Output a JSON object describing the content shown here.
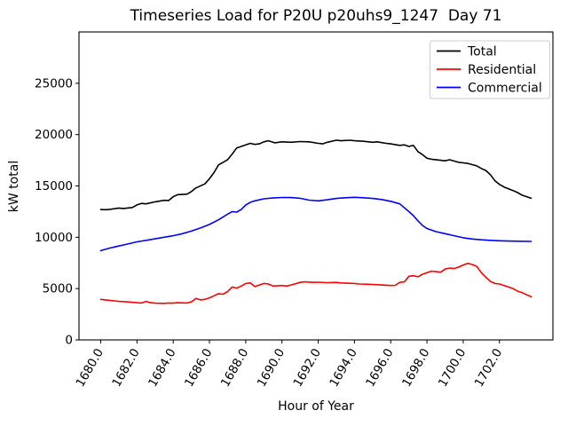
{
  "figure": {
    "background": "#ffffff",
    "frame_color": "#000000"
  },
  "chart_data": {
    "type": "line",
    "title": "Timeseries Load for P20U p20uhs9_1247  Day 71",
    "xlabel": "Hour of Year",
    "ylabel": "kW total",
    "xlim": [
      1678.8,
      1704.95
    ],
    "ylim": [
      0,
      30000
    ],
    "grid": false,
    "x_ticks": {
      "values": [
        1680,
        1682,
        1684,
        1686,
        1688,
        1690,
        1692,
        1694,
        1696,
        1698,
        1700,
        1702
      ],
      "labels": [
        "1680.0",
        "1682.0",
        "1684.0",
        "1686.0",
        "1688.0",
        "1690.0",
        "1692.0",
        "1694.0",
        "1696.0",
        "1698.0",
        "1700.0",
        "1702.0"
      ],
      "rotation_deg": 60
    },
    "y_ticks": {
      "values": [
        0,
        5000,
        10000,
        15000,
        20000,
        25000
      ],
      "labels": [
        "0",
        "5000",
        "10000",
        "15000",
        "20000",
        "25000"
      ]
    },
    "legend": {
      "position": "upper right",
      "border_color": "#cccccc",
      "background": "#ffffff",
      "entries": [
        "Total",
        "Residential",
        "Commercial"
      ]
    },
    "series": [
      {
        "name": "Total",
        "color": "#000000",
        "points": [
          [
            1680,
            12700
          ],
          [
            1680.25,
            12680
          ],
          [
            1680.5,
            12720
          ],
          [
            1681,
            12850
          ],
          [
            1681.25,
            12800
          ],
          [
            1681.75,
            12900
          ],
          [
            1682,
            13150
          ],
          [
            1682.25,
            13300
          ],
          [
            1682.5,
            13250
          ],
          [
            1683,
            13450
          ],
          [
            1683.5,
            13600
          ],
          [
            1683.75,
            13580
          ],
          [
            1684,
            13950
          ],
          [
            1684.25,
            14150
          ],
          [
            1684.75,
            14200
          ],
          [
            1685,
            14450
          ],
          [
            1685.25,
            14800
          ],
          [
            1685.75,
            15200
          ],
          [
            1686,
            15700
          ],
          [
            1686.25,
            16300
          ],
          [
            1686.5,
            17050
          ],
          [
            1686.75,
            17300
          ],
          [
            1687,
            17550
          ],
          [
            1687.25,
            18100
          ],
          [
            1687.5,
            18700
          ],
          [
            1687.75,
            18850
          ],
          [
            1688,
            19000
          ],
          [
            1688.25,
            19150
          ],
          [
            1688.5,
            19050
          ],
          [
            1688.75,
            19100
          ],
          [
            1689,
            19300
          ],
          [
            1689.25,
            19400
          ],
          [
            1689.6,
            19200
          ],
          [
            1690,
            19300
          ],
          [
            1690.5,
            19250
          ],
          [
            1691,
            19320
          ],
          [
            1691.5,
            19300
          ],
          [
            1692,
            19150
          ],
          [
            1692.25,
            19100
          ],
          [
            1692.5,
            19250
          ],
          [
            1693,
            19450
          ],
          [
            1693.25,
            19400
          ],
          [
            1693.75,
            19450
          ],
          [
            1694,
            19400
          ],
          [
            1694.5,
            19350
          ],
          [
            1695,
            19250
          ],
          [
            1695.25,
            19300
          ],
          [
            1695.75,
            19150
          ],
          [
            1696,
            19100
          ],
          [
            1696.5,
            18950
          ],
          [
            1696.75,
            19000
          ],
          [
            1697,
            18850
          ],
          [
            1697.25,
            18950
          ],
          [
            1697.5,
            18350
          ],
          [
            1697.75,
            18050
          ],
          [
            1698,
            17700
          ],
          [
            1698.25,
            17600
          ],
          [
            1698.75,
            17500
          ],
          [
            1699,
            17450
          ],
          [
            1699.25,
            17550
          ],
          [
            1699.75,
            17300
          ],
          [
            1700,
            17250
          ],
          [
            1700.25,
            17200
          ],
          [
            1700.75,
            16950
          ],
          [
            1701,
            16700
          ],
          [
            1701.25,
            16500
          ],
          [
            1701.5,
            16100
          ],
          [
            1701.75,
            15500
          ],
          [
            1702,
            15150
          ],
          [
            1702.25,
            14900
          ],
          [
            1702.75,
            14550
          ],
          [
            1703,
            14350
          ],
          [
            1703.25,
            14100
          ],
          [
            1703.75,
            13800
          ]
        ]
      },
      {
        "name": "Residential",
        "color": "#ff0000",
        "points": [
          [
            1680,
            3950
          ],
          [
            1680.25,
            3900
          ],
          [
            1680.75,
            3800
          ],
          [
            1681,
            3750
          ],
          [
            1681.5,
            3700
          ],
          [
            1682,
            3620
          ],
          [
            1682.25,
            3600
          ],
          [
            1682.5,
            3750
          ],
          [
            1682.75,
            3620
          ],
          [
            1683,
            3580
          ],
          [
            1683.5,
            3560
          ],
          [
            1683.75,
            3600
          ],
          [
            1684,
            3580
          ],
          [
            1684.25,
            3620
          ],
          [
            1684.75,
            3600
          ],
          [
            1685,
            3700
          ],
          [
            1685.25,
            4050
          ],
          [
            1685.5,
            3900
          ],
          [
            1685.75,
            3950
          ],
          [
            1686,
            4100
          ],
          [
            1686.25,
            4300
          ],
          [
            1686.5,
            4500
          ],
          [
            1686.75,
            4450
          ],
          [
            1687,
            4700
          ],
          [
            1687.25,
            5150
          ],
          [
            1687.5,
            5050
          ],
          [
            1687.75,
            5250
          ],
          [
            1688,
            5500
          ],
          [
            1688.25,
            5550
          ],
          [
            1688.5,
            5200
          ],
          [
            1688.75,
            5350
          ],
          [
            1689,
            5500
          ],
          [
            1689.25,
            5450
          ],
          [
            1689.5,
            5250
          ],
          [
            1690,
            5300
          ],
          [
            1690.25,
            5250
          ],
          [
            1690.5,
            5350
          ],
          [
            1691,
            5600
          ],
          [
            1691.25,
            5650
          ],
          [
            1691.75,
            5600
          ],
          [
            1692,
            5620
          ],
          [
            1692.5,
            5580
          ],
          [
            1693,
            5600
          ],
          [
            1693.25,
            5550
          ],
          [
            1693.75,
            5520
          ],
          [
            1694,
            5500
          ],
          [
            1694.25,
            5450
          ],
          [
            1694.75,
            5420
          ],
          [
            1695,
            5400
          ],
          [
            1695.5,
            5350
          ],
          [
            1696,
            5300
          ],
          [
            1696.25,
            5320
          ],
          [
            1696.5,
            5600
          ],
          [
            1696.75,
            5650
          ],
          [
            1697,
            6200
          ],
          [
            1697.25,
            6250
          ],
          [
            1697.5,
            6150
          ],
          [
            1697.75,
            6400
          ],
          [
            1698,
            6550
          ],
          [
            1698.25,
            6700
          ],
          [
            1698.5,
            6650
          ],
          [
            1698.75,
            6600
          ],
          [
            1699,
            6900
          ],
          [
            1699.25,
            7000
          ],
          [
            1699.5,
            6950
          ],
          [
            1699.75,
            7100
          ],
          [
            1700,
            7300
          ],
          [
            1700.25,
            7450
          ],
          [
            1700.5,
            7350
          ],
          [
            1700.75,
            7150
          ],
          [
            1701,
            6550
          ],
          [
            1701.25,
            6100
          ],
          [
            1701.5,
            5700
          ],
          [
            1701.75,
            5500
          ],
          [
            1702,
            5450
          ],
          [
            1702.25,
            5300
          ],
          [
            1702.5,
            5150
          ],
          [
            1702.75,
            5000
          ],
          [
            1703,
            4750
          ],
          [
            1703.25,
            4600
          ],
          [
            1703.5,
            4400
          ],
          [
            1703.75,
            4200
          ]
        ]
      },
      {
        "name": "Commercial",
        "color": "#0000ff",
        "points": [
          [
            1680,
            8700
          ],
          [
            1680.5,
            8950
          ],
          [
            1681,
            9150
          ],
          [
            1681.5,
            9350
          ],
          [
            1682,
            9550
          ],
          [
            1682.5,
            9700
          ],
          [
            1683,
            9850
          ],
          [
            1683.5,
            10000
          ],
          [
            1684,
            10150
          ],
          [
            1684.5,
            10350
          ],
          [
            1685,
            10600
          ],
          [
            1685.5,
            10900
          ],
          [
            1686,
            11250
          ],
          [
            1686.5,
            11700
          ],
          [
            1687,
            12250
          ],
          [
            1687.25,
            12500
          ],
          [
            1687.5,
            12450
          ],
          [
            1687.75,
            12700
          ],
          [
            1688,
            13150
          ],
          [
            1688.25,
            13400
          ],
          [
            1688.5,
            13550
          ],
          [
            1689,
            13750
          ],
          [
            1689.5,
            13820
          ],
          [
            1690,
            13880
          ],
          [
            1690.5,
            13870
          ],
          [
            1691,
            13800
          ],
          [
            1691.5,
            13620
          ],
          [
            1692,
            13550
          ],
          [
            1692.5,
            13650
          ],
          [
            1693,
            13780
          ],
          [
            1693.5,
            13850
          ],
          [
            1694,
            13890
          ],
          [
            1694.5,
            13850
          ],
          [
            1695,
            13780
          ],
          [
            1695.5,
            13680
          ],
          [
            1696,
            13500
          ],
          [
            1696.5,
            13250
          ],
          [
            1697,
            12500
          ],
          [
            1697.25,
            12100
          ],
          [
            1697.5,
            11600
          ],
          [
            1697.75,
            11150
          ],
          [
            1698,
            10850
          ],
          [
            1698.5,
            10550
          ],
          [
            1699,
            10350
          ],
          [
            1699.5,
            10150
          ],
          [
            1700,
            9950
          ],
          [
            1700.5,
            9830
          ],
          [
            1701,
            9750
          ],
          [
            1701.5,
            9700
          ],
          [
            1702,
            9660
          ],
          [
            1702.5,
            9630
          ],
          [
            1703,
            9610
          ],
          [
            1703.75,
            9600
          ]
        ]
      }
    ]
  }
}
